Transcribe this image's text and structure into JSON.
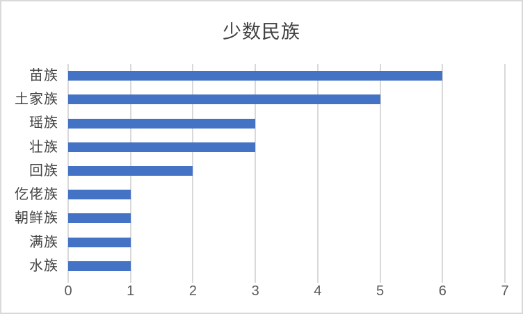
{
  "chart": {
    "colors": {
      "bar": "#4472C4",
      "gridline": "#D9D9D9",
      "axis_label": "#595959",
      "category_label": "#444444",
      "title": "#404040",
      "border": "#D9D9D9",
      "background": "#FFFFFF"
    }
  },
  "chart_data": {
    "type": "bar",
    "orientation": "horizontal",
    "title": "少数民族",
    "categories": [
      "苗族",
      "土家族",
      "瑶族",
      "壮族",
      "回族",
      "仡佬族",
      "朝鲜族",
      "满族",
      "水族"
    ],
    "values": [
      6,
      5,
      3,
      3,
      2,
      1,
      1,
      1,
      1
    ],
    "xlabel": "",
    "ylabel": "",
    "xlim": [
      0,
      7
    ],
    "xticks": [
      0,
      1,
      2,
      3,
      4,
      5,
      6,
      7
    ],
    "grid": true,
    "legend": false
  }
}
